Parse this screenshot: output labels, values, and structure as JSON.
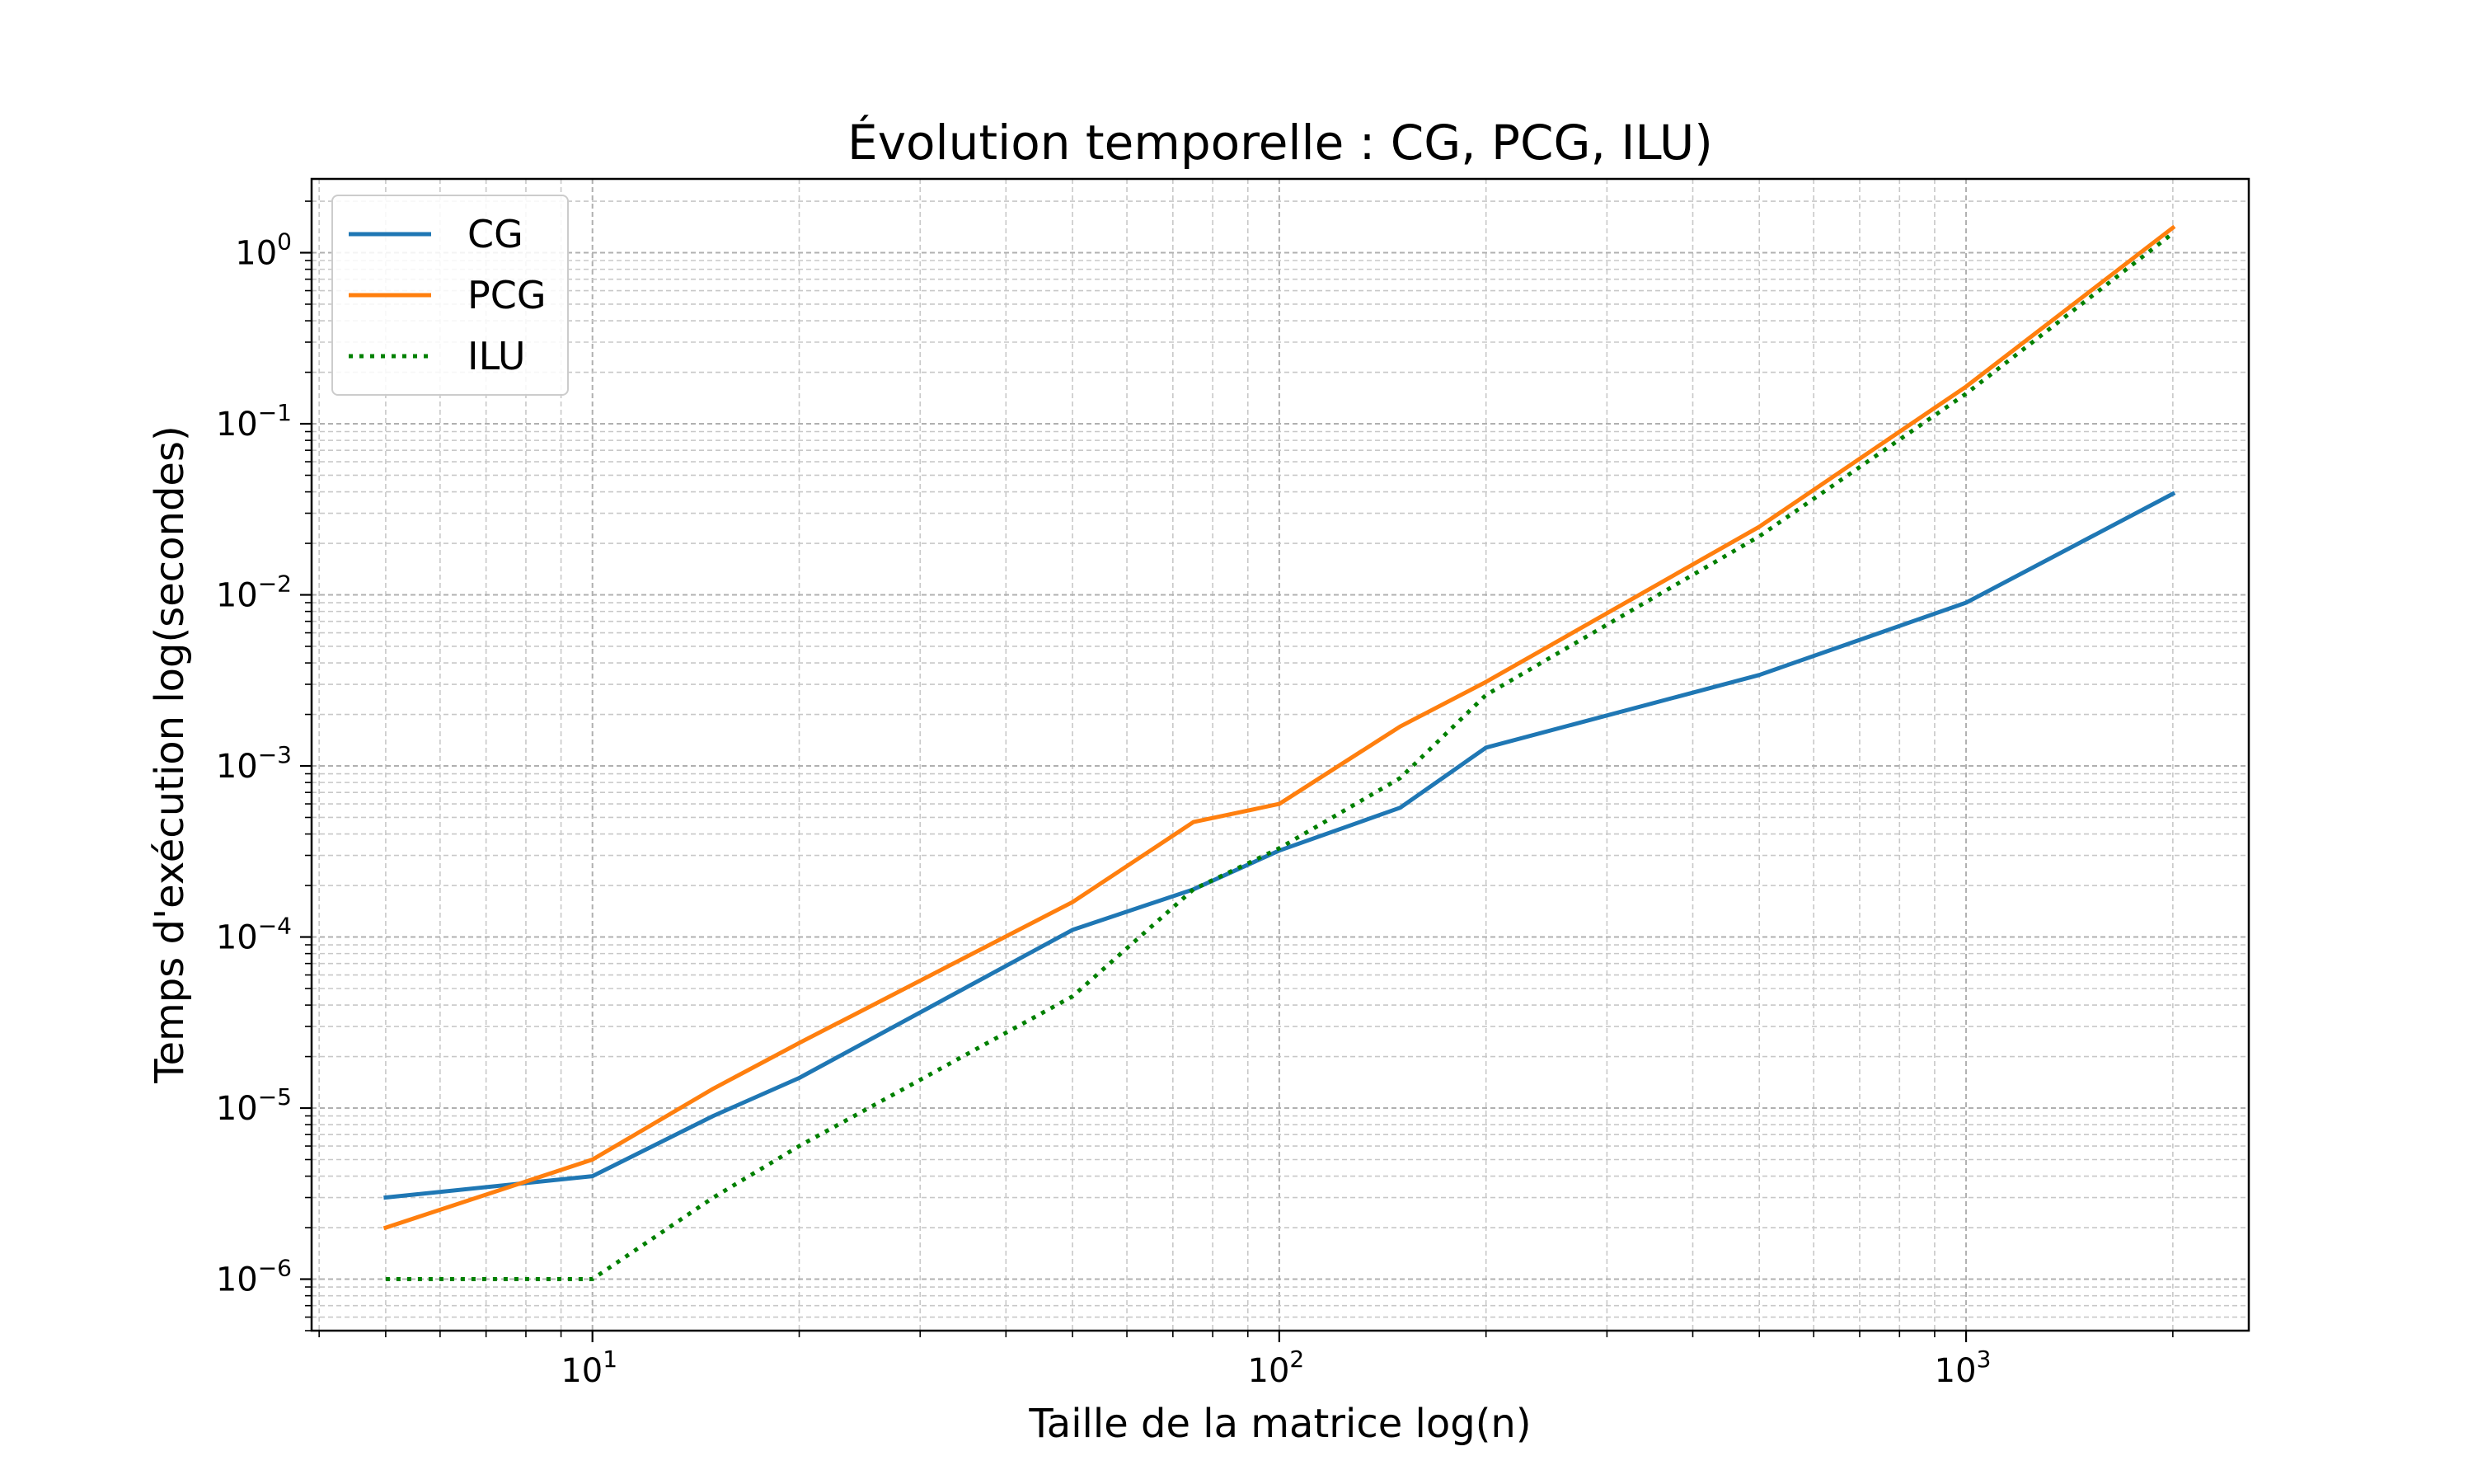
{
  "chart_data": {
    "type": "line",
    "title": "Évolution temporelle : CG, PCG, ILU)",
    "xlabel": "Taille de la matrice log(n)",
    "ylabel": "Temps d'exécution log(secondes)",
    "xscale": "log",
    "yscale": "log",
    "xlim": [
      3.9,
      2580
    ],
    "ylim": [
      5e-07,
      2.7
    ],
    "grid": true,
    "legend_position": "upper-left",
    "x": [
      5,
      10,
      15,
      20,
      50,
      75,
      100,
      150,
      200,
      500,
      1000,
      2000
    ],
    "series": [
      {
        "name": "CG",
        "color": "#1f77b4",
        "style": "solid",
        "values": [
          3e-06,
          4e-06,
          9e-06,
          1.5e-05,
          0.00011,
          0.00019,
          0.00032,
          0.00057,
          0.00128,
          0.0034,
          0.009,
          0.039
        ]
      },
      {
        "name": "PCG",
        "color": "#ff7f0e",
        "style": "solid",
        "values": [
          2e-06,
          5e-06,
          1.3e-05,
          2.4e-05,
          0.00016,
          0.00047,
          0.0006,
          0.0017,
          0.0031,
          0.025,
          0.165,
          1.4
        ]
      },
      {
        "name": "ILU",
        "color": "#008000",
        "style": "dotted",
        "values": [
          1e-06,
          1e-06,
          3e-06,
          6e-06,
          4.5e-05,
          0.00019,
          0.00033,
          0.00085,
          0.0026,
          0.022,
          0.15,
          1.3
        ]
      }
    ],
    "x_ticks": [
      {
        "value": 10,
        "base": "10",
        "exp": "1"
      },
      {
        "value": 100,
        "base": "10",
        "exp": "2"
      },
      {
        "value": 1000,
        "base": "10",
        "exp": "3"
      }
    ],
    "y_ticks": [
      {
        "value": 1e-06,
        "base": "10",
        "exp": "−6"
      },
      {
        "value": 1e-05,
        "base": "10",
        "exp": "−5"
      },
      {
        "value": 0.0001,
        "base": "10",
        "exp": "−4"
      },
      {
        "value": 0.001,
        "base": "10",
        "exp": "−3"
      },
      {
        "value": 0.01,
        "base": "10",
        "exp": "−2"
      },
      {
        "value": 0.1,
        "base": "10",
        "exp": "−1"
      },
      {
        "value": 1,
        "base": "10",
        "exp": "0"
      }
    ]
  }
}
